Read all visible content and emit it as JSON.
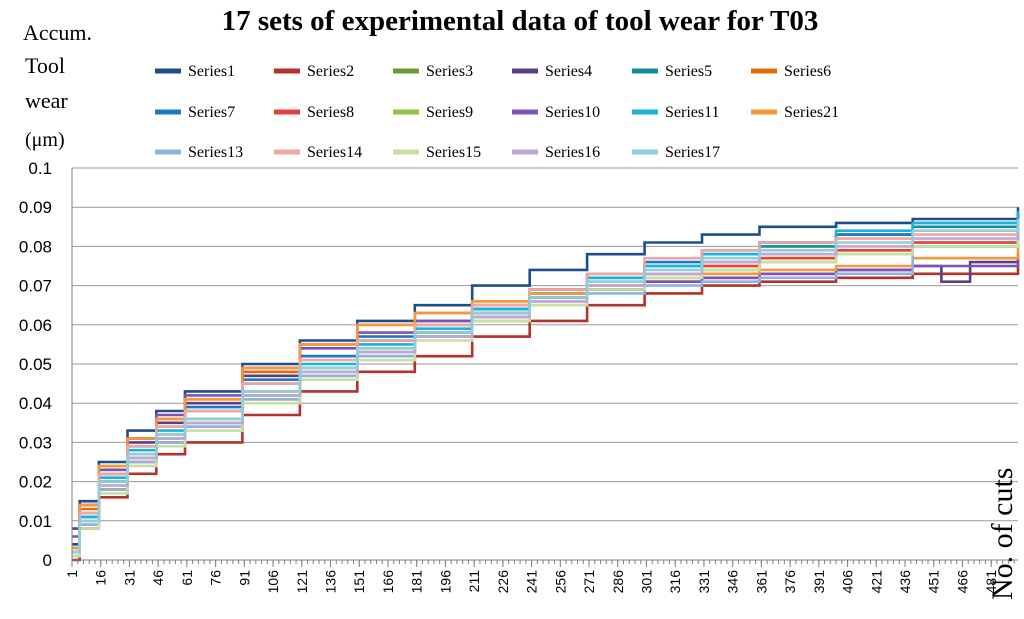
{
  "chart_data": {
    "type": "line",
    "title": "17 sets of experimental data of tool wear for T03",
    "ylabel_lines": [
      "Accum.",
      "Tool",
      "wear",
      "(μm)"
    ],
    "xlabel": "No. of cuts",
    "ylim": [
      0,
      0.1
    ],
    "yticks": [
      "0",
      "0.01",
      "0.02",
      "0.03",
      "0.04",
      "0.05",
      "0.06",
      "0.07",
      "0.08",
      "0.09",
      "0.1"
    ],
    "xlim": [
      1,
      495
    ],
    "xticks": [
      "1",
      "16",
      "31",
      "46",
      "61",
      "76",
      "91",
      "106",
      "121",
      "136",
      "151",
      "166",
      "181",
      "196",
      "211",
      "226",
      "241",
      "256",
      "271",
      "286",
      "301",
      "316",
      "331",
      "346",
      "361",
      "376",
      "391",
      "406",
      "421",
      "436",
      "451",
      "466",
      "481"
    ],
    "grid": true,
    "legend_position": "top",
    "series": [
      {
        "name": "Series1",
        "color": "#1f4e8c",
        "x": [
          1,
          5,
          15,
          30,
          45,
          60,
          90,
          120,
          150,
          180,
          210,
          240,
          270,
          300,
          330,
          360,
          400,
          440,
          495
        ],
        "values": [
          0.004,
          0.015,
          0.025,
          0.033,
          0.038,
          0.043,
          0.05,
          0.056,
          0.061,
          0.065,
          0.07,
          0.074,
          0.078,
          0.081,
          0.083,
          0.085,
          0.086,
          0.087,
          0.09
        ]
      },
      {
        "name": "Series2",
        "color": "#b3322b",
        "x": [
          1,
          5,
          15,
          30,
          45,
          60,
          90,
          120,
          150,
          180,
          210,
          240,
          270,
          300,
          330,
          360,
          400,
          440,
          495
        ],
        "values": [
          0.0,
          0.008,
          0.016,
          0.022,
          0.027,
          0.03,
          0.037,
          0.043,
          0.048,
          0.052,
          0.057,
          0.061,
          0.065,
          0.068,
          0.07,
          0.071,
          0.072,
          0.073,
          0.076
        ]
      },
      {
        "name": "Series3",
        "color": "#6e9a34",
        "x": [
          1,
          5,
          15,
          30,
          45,
          60,
          90,
          120,
          150,
          180,
          210,
          240,
          270,
          300,
          330,
          360,
          395
        ],
        "values": [
          0.002,
          0.01,
          0.02,
          0.027,
          0.032,
          0.036,
          0.043,
          0.049,
          0.054,
          0.058,
          0.063,
          0.067,
          0.07,
          0.073,
          0.076,
          0.078,
          0.078
        ]
      },
      {
        "name": "Series4",
        "color": "#5b3f86",
        "x": [
          1,
          5,
          15,
          30,
          45,
          60,
          90,
          120,
          150,
          180,
          210,
          240,
          270,
          300,
          330,
          360,
          400,
          440,
          455,
          470,
          495
        ],
        "values": [
          0.008,
          0.014,
          0.022,
          0.03,
          0.035,
          0.04,
          0.047,
          0.052,
          0.056,
          0.06,
          0.064,
          0.067,
          0.069,
          0.071,
          0.072,
          0.073,
          0.074,
          0.075,
          0.071,
          0.076,
          0.078
        ]
      },
      {
        "name": "Series5",
        "color": "#138c9b",
        "x": [
          1,
          5,
          15,
          30,
          45,
          60,
          90,
          120,
          150,
          180,
          210,
          240,
          270,
          300,
          330,
          360,
          400,
          440,
          495
        ],
        "values": [
          0.003,
          0.011,
          0.02,
          0.026,
          0.031,
          0.035,
          0.042,
          0.048,
          0.053,
          0.058,
          0.063,
          0.068,
          0.072,
          0.075,
          0.078,
          0.08,
          0.083,
          0.085,
          0.088
        ]
      },
      {
        "name": "Series6",
        "color": "#e36c0a",
        "x": [
          1,
          5,
          15,
          30,
          45,
          60,
          90,
          120,
          150,
          180,
          210,
          240,
          270,
          300,
          330,
          360,
          400,
          440,
          495
        ],
        "values": [
          0.003,
          0.013,
          0.023,
          0.031,
          0.036,
          0.041,
          0.048,
          0.055,
          0.06,
          0.063,
          0.066,
          0.069,
          0.071,
          0.073,
          0.075,
          0.077,
          0.079,
          0.081,
          0.084
        ]
      },
      {
        "name": "Series7",
        "color": "#1f77c9",
        "x": [
          1,
          5,
          15,
          30,
          45,
          60,
          90,
          120,
          150,
          180,
          210,
          240,
          270,
          300,
          330,
          360,
          400,
          440,
          495
        ],
        "values": [
          0.002,
          0.012,
          0.022,
          0.029,
          0.034,
          0.039,
          0.046,
          0.052,
          0.057,
          0.061,
          0.065,
          0.069,
          0.073,
          0.076,
          0.079,
          0.081,
          0.083,
          0.086,
          0.089
        ]
      },
      {
        "name": "Series8",
        "color": "#e8403a",
        "x": [
          1,
          5,
          15,
          30,
          45,
          60,
          90,
          120,
          150,
          180,
          210,
          240,
          270,
          300,
          330,
          360,
          400,
          440,
          495
        ],
        "values": [
          0.001,
          0.009,
          0.018,
          0.025,
          0.03,
          0.034,
          0.041,
          0.047,
          0.052,
          0.057,
          0.062,
          0.066,
          0.07,
          0.073,
          0.075,
          0.077,
          0.079,
          0.081,
          0.083
        ]
      },
      {
        "name": "Series9",
        "color": "#8dc63f",
        "x": [
          1,
          5,
          15,
          30,
          45,
          60,
          90,
          120,
          150,
          180,
          210,
          240,
          270,
          300,
          330,
          360,
          400,
          440,
          495
        ],
        "values": [
          0.002,
          0.01,
          0.019,
          0.026,
          0.031,
          0.035,
          0.042,
          0.048,
          0.053,
          0.057,
          0.062,
          0.066,
          0.069,
          0.072,
          0.074,
          0.076,
          0.078,
          0.08,
          0.082
        ]
      },
      {
        "name": "Series10",
        "color": "#7d52b5",
        "x": [
          1,
          5,
          15,
          30,
          45,
          60,
          90,
          120,
          150,
          180,
          210,
          240,
          270,
          300,
          330,
          360,
          400,
          440,
          495
        ],
        "values": [
          0.006,
          0.014,
          0.023,
          0.031,
          0.037,
          0.042,
          0.049,
          0.054,
          0.058,
          0.061,
          0.064,
          0.067,
          0.069,
          0.071,
          0.072,
          0.073,
          0.074,
          0.075,
          0.077
        ]
      },
      {
        "name": "Series11",
        "color": "#19b3d9",
        "x": [
          1,
          5,
          15,
          30,
          45,
          60,
          90,
          120,
          150,
          180,
          210,
          240,
          270,
          300,
          330,
          360,
          400,
          440,
          495
        ],
        "values": [
          0.002,
          0.011,
          0.021,
          0.028,
          0.033,
          0.038,
          0.045,
          0.05,
          0.055,
          0.059,
          0.064,
          0.068,
          0.072,
          0.075,
          0.078,
          0.081,
          0.084,
          0.086,
          0.089
        ]
      },
      {
        "name": "Series21",
        "color": "#f7963b",
        "x": [
          1,
          5,
          15,
          30,
          45,
          60,
          90,
          120,
          150,
          180,
          210,
          240,
          270,
          300,
          330,
          360,
          400,
          440,
          495
        ],
        "values": [
          0.003,
          0.014,
          0.024,
          0.031,
          0.036,
          0.041,
          0.049,
          0.055,
          0.06,
          0.063,
          0.066,
          0.068,
          0.07,
          0.072,
          0.073,
          0.074,
          0.075,
          0.077,
          0.08
        ]
      },
      {
        "name": "Series13",
        "color": "#8fb3dc",
        "x": [
          1,
          5,
          15,
          30,
          45,
          60,
          90,
          120,
          150,
          180,
          210,
          240,
          270,
          300,
          330,
          360,
          400,
          440,
          495
        ],
        "values": [
          0.001,
          0.009,
          0.018,
          0.025,
          0.03,
          0.034,
          0.041,
          0.047,
          0.052,
          0.057,
          0.061,
          0.065,
          0.068,
          0.07,
          0.071,
          0.072,
          0.073,
          0.08,
          0.084
        ]
      },
      {
        "name": "Series14",
        "color": "#f0a5a0",
        "x": [
          1,
          5,
          15,
          30,
          45,
          60,
          90,
          120,
          150,
          180,
          210,
          240,
          270,
          300,
          330,
          360,
          400,
          440,
          495
        ],
        "values": [
          0.002,
          0.012,
          0.022,
          0.029,
          0.034,
          0.038,
          0.045,
          0.051,
          0.056,
          0.06,
          0.065,
          0.069,
          0.073,
          0.077,
          0.079,
          0.081,
          0.082,
          0.083,
          0.085
        ]
      },
      {
        "name": "Series15",
        "color": "#c6e0a4",
        "x": [
          1,
          5,
          15,
          30,
          45,
          60,
          90,
          120,
          150,
          180,
          210,
          240,
          270,
          300,
          330,
          360,
          400,
          440,
          495
        ],
        "values": [
          0.001,
          0.008,
          0.017,
          0.024,
          0.029,
          0.033,
          0.04,
          0.046,
          0.051,
          0.056,
          0.061,
          0.065,
          0.069,
          0.072,
          0.074,
          0.076,
          0.078,
          0.08,
          0.082
        ]
      },
      {
        "name": "Series16",
        "color": "#bfa8d6",
        "x": [
          1,
          5,
          15,
          30,
          45,
          60,
          90,
          120,
          150,
          180,
          210,
          240,
          270,
          300,
          330,
          360,
          400,
          440,
          495
        ],
        "values": [
          0.002,
          0.01,
          0.019,
          0.026,
          0.031,
          0.035,
          0.042,
          0.048,
          0.053,
          0.057,
          0.062,
          0.066,
          0.07,
          0.073,
          0.076,
          0.078,
          0.08,
          0.082,
          0.084
        ]
      },
      {
        "name": "Series17",
        "color": "#92cddc",
        "x": [
          1,
          5,
          15,
          30,
          45,
          60,
          90,
          120,
          150,
          180,
          210,
          240,
          270,
          300,
          330,
          360,
          400,
          440,
          495
        ],
        "values": [
          0.002,
          0.01,
          0.02,
          0.027,
          0.032,
          0.036,
          0.043,
          0.049,
          0.054,
          0.058,
          0.063,
          0.067,
          0.071,
          0.074,
          0.077,
          0.079,
          0.081,
          0.084,
          0.087
        ]
      }
    ]
  }
}
